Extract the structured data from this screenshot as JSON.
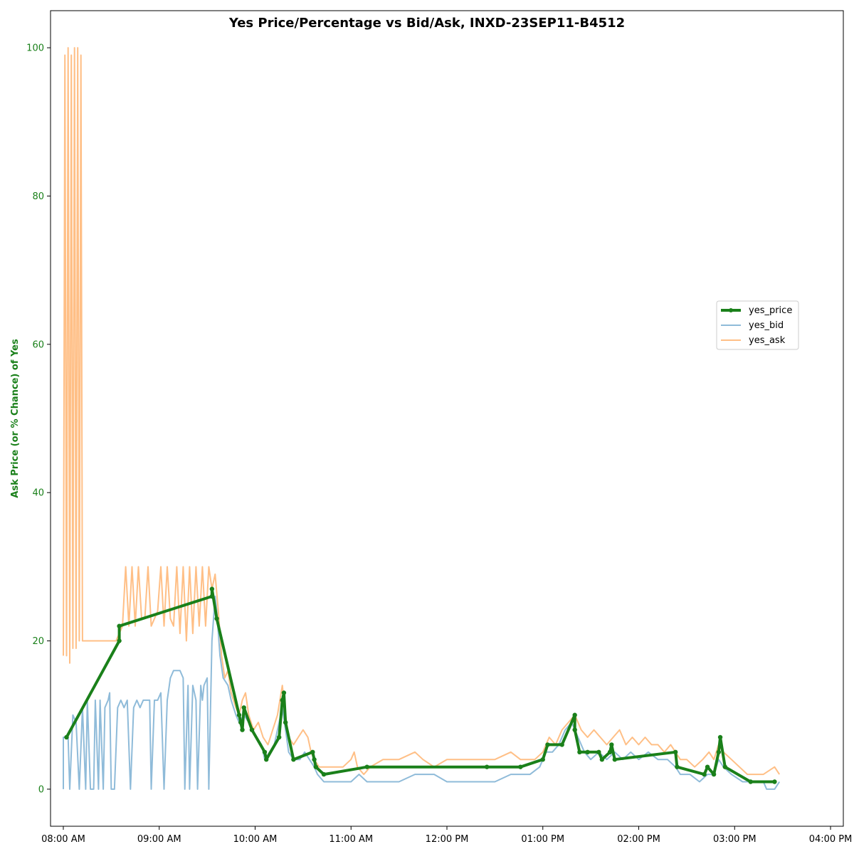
{
  "chart_data": {
    "type": "line",
    "title": "Yes Price/Percentage vs Bid/Ask, INXD-23SEP11-B4512",
    "ylabel": "Ask Price (or % Chance) of Yes",
    "xlabel": "",
    "ylim": [
      -5,
      105
    ],
    "xlim_minutes": [
      472,
      968
    ],
    "y_ticks": [
      0,
      20,
      40,
      60,
      80,
      100
    ],
    "x_ticks": [
      {
        "minute": 480,
        "label": "08:00 AM"
      },
      {
        "minute": 540,
        "label": "09:00 AM"
      },
      {
        "minute": 600,
        "label": "10:00 AM"
      },
      {
        "minute": 660,
        "label": "11:00 AM"
      },
      {
        "minute": 720,
        "label": "12:00 PM"
      },
      {
        "minute": 780,
        "label": "01:00 PM"
      },
      {
        "minute": 840,
        "label": "02:00 PM"
      },
      {
        "minute": 900,
        "label": "03:00 PM"
      },
      {
        "minute": 960,
        "label": "04:00 PM"
      }
    ],
    "grid": false,
    "legend_position": "right",
    "series": [
      {
        "name": "yes_price",
        "color": "#1a801a",
        "marker": "circle",
        "points": [
          [
            482,
            7
          ],
          [
            515,
            20
          ],
          [
            515,
            22
          ],
          [
            573,
            26
          ],
          [
            573,
            27
          ],
          [
            576,
            23
          ],
          [
            590,
            10
          ],
          [
            591,
            9
          ],
          [
            592,
            8
          ],
          [
            593,
            11
          ],
          [
            598,
            8
          ],
          [
            606,
            5
          ],
          [
            607,
            4
          ],
          [
            615,
            7
          ],
          [
            617,
            12
          ],
          [
            618,
            13
          ],
          [
            619,
            9
          ],
          [
            624,
            4
          ],
          [
            636,
            5
          ],
          [
            637,
            4
          ],
          [
            638,
            3
          ],
          [
            643,
            2
          ],
          [
            670,
            3
          ],
          [
            745,
            3
          ],
          [
            766,
            3
          ],
          [
            780,
            4
          ],
          [
            783,
            6
          ],
          [
            792,
            6
          ],
          [
            800,
            10
          ],
          [
            800,
            8
          ],
          [
            803,
            5
          ],
          [
            808,
            5
          ],
          [
            815,
            5
          ],
          [
            817,
            4
          ],
          [
            822,
            5
          ],
          [
            823,
            6
          ],
          [
            825,
            4
          ],
          [
            863,
            5
          ],
          [
            864,
            3
          ],
          [
            881,
            2
          ],
          [
            883,
            3
          ],
          [
            887,
            2
          ],
          [
            890,
            5
          ],
          [
            891,
            7
          ],
          [
            894,
            3
          ],
          [
            910,
            1
          ],
          [
            925,
            1
          ]
        ]
      },
      {
        "name": "yes_bid",
        "color": "#1f77b4",
        "points": [
          [
            480,
            0
          ],
          [
            480,
            7
          ],
          [
            483,
            7
          ],
          [
            484,
            0
          ],
          [
            486,
            10
          ],
          [
            488,
            9
          ],
          [
            490,
            0
          ],
          [
            492,
            11
          ],
          [
            494,
            0
          ],
          [
            495,
            12
          ],
          [
            497,
            0
          ],
          [
            499,
            0
          ],
          [
            500,
            12
          ],
          [
            502,
            0
          ],
          [
            503,
            12
          ],
          [
            505,
            0
          ],
          [
            506,
            11
          ],
          [
            508,
            12
          ],
          [
            509,
            13
          ],
          [
            510,
            0
          ],
          [
            512,
            0
          ],
          [
            514,
            11
          ],
          [
            516,
            12
          ],
          [
            518,
            11
          ],
          [
            520,
            12
          ],
          [
            522,
            0
          ],
          [
            524,
            11
          ],
          [
            526,
            12
          ],
          [
            528,
            11
          ],
          [
            530,
            12
          ],
          [
            532,
            12
          ],
          [
            534,
            12
          ],
          [
            535,
            0
          ],
          [
            537,
            12
          ],
          [
            539,
            12
          ],
          [
            541,
            13
          ],
          [
            543,
            0
          ],
          [
            545,
            12
          ],
          [
            547,
            15
          ],
          [
            549,
            16
          ],
          [
            551,
            16
          ],
          [
            553,
            16
          ],
          [
            555,
            15
          ],
          [
            556,
            0
          ],
          [
            558,
            14
          ],
          [
            559,
            0
          ],
          [
            561,
            14
          ],
          [
            563,
            12
          ],
          [
            564,
            0
          ],
          [
            566,
            14
          ],
          [
            567,
            12
          ],
          [
            568,
            14
          ],
          [
            570,
            15
          ],
          [
            571,
            0
          ],
          [
            573,
            20
          ],
          [
            575,
            26
          ],
          [
            576,
            24
          ],
          [
            578,
            18
          ],
          [
            580,
            15
          ],
          [
            583,
            14
          ],
          [
            585,
            12
          ],
          [
            588,
            10
          ],
          [
            590,
            9
          ],
          [
            593,
            10
          ],
          [
            596,
            9
          ],
          [
            598,
            8
          ],
          [
            601,
            7
          ],
          [
            604,
            6
          ],
          [
            606,
            4
          ],
          [
            609,
            5
          ],
          [
            612,
            6
          ],
          [
            614,
            8
          ],
          [
            617,
            11
          ],
          [
            619,
            8
          ],
          [
            621,
            5
          ],
          [
            624,
            4
          ],
          [
            628,
            4
          ],
          [
            631,
            5
          ],
          [
            634,
            4
          ],
          [
            637,
            3
          ],
          [
            639,
            2
          ],
          [
            643,
            1
          ],
          [
            650,
            1
          ],
          [
            660,
            1
          ],
          [
            665,
            2
          ],
          [
            670,
            1
          ],
          [
            680,
            1
          ],
          [
            690,
            1
          ],
          [
            700,
            2
          ],
          [
            712,
            2
          ],
          [
            720,
            1
          ],
          [
            730,
            1
          ],
          [
            740,
            1
          ],
          [
            750,
            1
          ],
          [
            760,
            2
          ],
          [
            766,
            2
          ],
          [
            772,
            2
          ],
          [
            778,
            3
          ],
          [
            782,
            5
          ],
          [
            786,
            5
          ],
          [
            790,
            6
          ],
          [
            794,
            8
          ],
          [
            798,
            9
          ],
          [
            802,
            7
          ],
          [
            806,
            5
          ],
          [
            810,
            4
          ],
          [
            815,
            5
          ],
          [
            820,
            4
          ],
          [
            825,
            5
          ],
          [
            830,
            4
          ],
          [
            835,
            5
          ],
          [
            840,
            4
          ],
          [
            846,
            5
          ],
          [
            852,
            4
          ],
          [
            858,
            4
          ],
          [
            863,
            3
          ],
          [
            866,
            2
          ],
          [
            872,
            2
          ],
          [
            878,
            1
          ],
          [
            883,
            2
          ],
          [
            887,
            2
          ],
          [
            890,
            4
          ],
          [
            893,
            3
          ],
          [
            898,
            2
          ],
          [
            905,
            1
          ],
          [
            918,
            1
          ],
          [
            920,
            0
          ],
          [
            925,
            0
          ],
          [
            928,
            1
          ]
        ]
      },
      {
        "name": "yes_ask",
        "color": "#ff7f0e",
        "points": [
          [
            480,
            18
          ],
          [
            481,
            99
          ],
          [
            482,
            18
          ],
          [
            483,
            100
          ],
          [
            484,
            17
          ],
          [
            485,
            99
          ],
          [
            486,
            19
          ],
          [
            487,
            100
          ],
          [
            488,
            19
          ],
          [
            489,
            100
          ],
          [
            490,
            20
          ],
          [
            491,
            99
          ],
          [
            492,
            20
          ],
          [
            493,
            20
          ],
          [
            513,
            20
          ],
          [
            515,
            21
          ],
          [
            517,
            22
          ],
          [
            519,
            30
          ],
          [
            521,
            22
          ],
          [
            523,
            30
          ],
          [
            525,
            22
          ],
          [
            527,
            30
          ],
          [
            529,
            23
          ],
          [
            531,
            23
          ],
          [
            533,
            30
          ],
          [
            535,
            22
          ],
          [
            537,
            23
          ],
          [
            539,
            24
          ],
          [
            541,
            30
          ],
          [
            543,
            22
          ],
          [
            545,
            30
          ],
          [
            547,
            23
          ],
          [
            549,
            22
          ],
          [
            551,
            30
          ],
          [
            553,
            21
          ],
          [
            555,
            30
          ],
          [
            557,
            20
          ],
          [
            559,
            30
          ],
          [
            561,
            21
          ],
          [
            563,
            30
          ],
          [
            565,
            22
          ],
          [
            567,
            30
          ],
          [
            569,
            22
          ],
          [
            571,
            30
          ],
          [
            573,
            27
          ],
          [
            575,
            29
          ],
          [
            577,
            24
          ],
          [
            579,
            18
          ],
          [
            581,
            15
          ],
          [
            583,
            16
          ],
          [
            585,
            13
          ],
          [
            588,
            11
          ],
          [
            590,
            10
          ],
          [
            592,
            12
          ],
          [
            594,
            13
          ],
          [
            596,
            10
          ],
          [
            599,
            8
          ],
          [
            602,
            9
          ],
          [
            605,
            7
          ],
          [
            608,
            6
          ],
          [
            611,
            8
          ],
          [
            614,
            10
          ],
          [
            617,
            14
          ],
          [
            619,
            10
          ],
          [
            621,
            7
          ],
          [
            624,
            6
          ],
          [
            627,
            7
          ],
          [
            630,
            8
          ],
          [
            633,
            7
          ],
          [
            635,
            5
          ],
          [
            637,
            4
          ],
          [
            640,
            3
          ],
          [
            645,
            3
          ],
          [
            650,
            3
          ],
          [
            655,
            3
          ],
          [
            660,
            4
          ],
          [
            662,
            5
          ],
          [
            664,
            3
          ],
          [
            668,
            2
          ],
          [
            672,
            3
          ],
          [
            680,
            4
          ],
          [
            690,
            4
          ],
          [
            700,
            5
          ],
          [
            705,
            4
          ],
          [
            712,
            3
          ],
          [
            720,
            4
          ],
          [
            730,
            4
          ],
          [
            740,
            4
          ],
          [
            750,
            4
          ],
          [
            760,
            5
          ],
          [
            766,
            4
          ],
          [
            770,
            4
          ],
          [
            775,
            4
          ],
          [
            780,
            5
          ],
          [
            784,
            7
          ],
          [
            788,
            6
          ],
          [
            792,
            8
          ],
          [
            796,
            9
          ],
          [
            800,
            10
          ],
          [
            804,
            8
          ],
          [
            808,
            7
          ],
          [
            812,
            8
          ],
          [
            816,
            7
          ],
          [
            820,
            6
          ],
          [
            824,
            7
          ],
          [
            828,
            8
          ],
          [
            832,
            6
          ],
          [
            836,
            7
          ],
          [
            840,
            6
          ],
          [
            844,
            7
          ],
          [
            848,
            6
          ],
          [
            852,
            6
          ],
          [
            856,
            5
          ],
          [
            860,
            6
          ],
          [
            863,
            5
          ],
          [
            866,
            4
          ],
          [
            870,
            4
          ],
          [
            875,
            3
          ],
          [
            880,
            4
          ],
          [
            884,
            5
          ],
          [
            887,
            4
          ],
          [
            890,
            6
          ],
          [
            893,
            5
          ],
          [
            898,
            4
          ],
          [
            903,
            3
          ],
          [
            908,
            2
          ],
          [
            913,
            2
          ],
          [
            918,
            2
          ],
          [
            925,
            3
          ],
          [
            928,
            2
          ]
        ]
      }
    ]
  }
}
